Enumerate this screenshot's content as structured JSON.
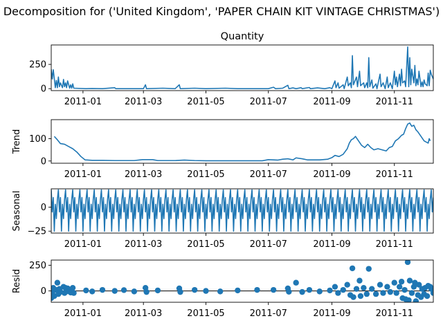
{
  "chart_data": {
    "type": "line",
    "title": "Decomposition for ('United Kingdom', 'PAPER CHAIN KIT VINTAGE CHRISTMAS')",
    "x_range": [
      "2010-12-01",
      "2011-12-09"
    ],
    "x_ticks": [
      "2011-01",
      "2011-03",
      "2011-05",
      "2011-07",
      "2011-09",
      "2011-11"
    ],
    "series_color": "#1f77b4",
    "panels": [
      {
        "key": "observed",
        "title": "Quantity",
        "ylabel": "",
        "type": "line",
        "ylim": [
          -20,
          450
        ],
        "yticks": [
          0,
          250
        ],
        "points": [
          [
            "2010-12-01",
            200
          ],
          [
            "2010-12-02",
            100
          ],
          [
            "2010-12-03",
            195
          ],
          [
            "2010-12-05",
            10
          ],
          [
            "2010-12-06",
            85
          ],
          [
            "2010-12-07",
            10
          ],
          [
            "2010-12-08",
            120
          ],
          [
            "2010-12-09",
            20
          ],
          [
            "2010-12-10",
            60
          ],
          [
            "2010-12-12",
            10
          ],
          [
            "2010-12-13",
            95
          ],
          [
            "2010-12-14",
            20
          ],
          [
            "2010-12-15",
            60
          ],
          [
            "2010-12-16",
            10
          ],
          [
            "2010-12-17",
            80
          ],
          [
            "2010-12-19",
            5
          ],
          [
            "2010-12-20",
            40
          ],
          [
            "2010-12-21",
            5
          ],
          [
            "2010-12-22",
            50
          ],
          [
            "2010-12-23",
            5
          ],
          [
            "2011-01-04",
            0
          ],
          [
            "2011-01-10",
            2
          ],
          [
            "2011-01-20",
            0
          ],
          [
            "2011-02-01",
            10
          ],
          [
            "2011-02-02",
            0
          ],
          [
            "2011-02-15",
            0
          ],
          [
            "2011-03-01",
            0
          ],
          [
            "2011-03-03",
            40
          ],
          [
            "2011-03-04",
            0
          ],
          [
            "2011-03-20",
            5
          ],
          [
            "2011-04-01",
            0
          ],
          [
            "2011-04-05",
            40
          ],
          [
            "2011-04-06",
            0
          ],
          [
            "2011-04-20",
            5
          ],
          [
            "2011-05-01",
            0
          ],
          [
            "2011-05-20",
            5
          ],
          [
            "2011-06-01",
            0
          ],
          [
            "2011-06-20",
            0
          ],
          [
            "2011-07-01",
            0
          ],
          [
            "2011-07-06",
            15
          ],
          [
            "2011-07-08",
            0
          ],
          [
            "2011-07-15",
            5
          ],
          [
            "2011-07-20",
            35
          ],
          [
            "2011-07-21",
            0
          ],
          [
            "2011-07-25",
            8
          ],
          [
            "2011-07-28",
            0
          ],
          [
            "2011-08-02",
            10
          ],
          [
            "2011-08-03",
            0
          ],
          [
            "2011-08-10",
            12
          ],
          [
            "2011-08-11",
            0
          ],
          [
            "2011-08-18",
            8
          ],
          [
            "2011-08-25",
            0
          ],
          [
            "2011-08-30",
            10
          ],
          [
            "2011-09-01",
            0
          ],
          [
            "2011-09-04",
            80
          ],
          [
            "2011-09-05",
            10
          ],
          [
            "2011-09-07",
            60
          ],
          [
            "2011-09-08",
            5
          ],
          [
            "2011-09-12",
            40
          ],
          [
            "2011-09-13",
            0
          ],
          [
            "2011-09-16",
            120
          ],
          [
            "2011-09-17",
            30
          ],
          [
            "2011-09-19",
            60
          ],
          [
            "2011-09-20",
            10
          ],
          [
            "2011-09-21",
            340
          ],
          [
            "2011-09-22",
            40
          ],
          [
            "2011-09-25",
            120
          ],
          [
            "2011-09-26",
            20
          ],
          [
            "2011-09-28",
            180
          ],
          [
            "2011-09-29",
            30
          ],
          [
            "2011-10-02",
            60
          ],
          [
            "2011-10-03",
            10
          ],
          [
            "2011-10-05",
            60
          ],
          [
            "2011-10-06",
            10
          ],
          [
            "2011-10-07",
            320
          ],
          [
            "2011-10-08",
            20
          ],
          [
            "2011-10-10",
            90
          ],
          [
            "2011-10-11",
            5
          ],
          [
            "2011-10-14",
            50
          ],
          [
            "2011-10-15",
            0
          ],
          [
            "2011-10-18",
            150
          ],
          [
            "2011-10-19",
            20
          ],
          [
            "2011-10-21",
            60
          ],
          [
            "2011-10-23",
            0
          ],
          [
            "2011-10-25",
            120
          ],
          [
            "2011-10-26",
            10
          ],
          [
            "2011-10-28",
            60
          ],
          [
            "2011-10-30",
            0
          ],
          [
            "2011-11-01",
            180
          ],
          [
            "2011-11-02",
            40
          ],
          [
            "2011-11-03",
            120
          ],
          [
            "2011-11-04",
            20
          ],
          [
            "2011-11-06",
            150
          ],
          [
            "2011-11-07",
            30
          ],
          [
            "2011-11-08",
            200
          ],
          [
            "2011-11-09",
            60
          ],
          [
            "2011-11-11",
            80
          ],
          [
            "2011-11-12",
            20
          ],
          [
            "2011-11-14",
            430
          ],
          [
            "2011-11-15",
            20
          ],
          [
            "2011-11-16",
            320
          ],
          [
            "2011-11-17",
            40
          ],
          [
            "2011-11-18",
            200
          ],
          [
            "2011-11-20",
            60
          ],
          [
            "2011-11-21",
            240
          ],
          [
            "2011-11-22",
            30
          ],
          [
            "2011-11-23",
            100
          ],
          [
            "2011-11-24",
            40
          ],
          [
            "2011-11-25",
            180
          ],
          [
            "2011-11-27",
            20
          ],
          [
            "2011-11-28",
            70
          ],
          [
            "2011-11-29",
            20
          ],
          [
            "2011-11-30",
            90
          ],
          [
            "2011-12-01",
            50
          ],
          [
            "2011-12-03",
            30
          ],
          [
            "2011-12-04",
            160
          ],
          [
            "2011-12-05",
            30
          ],
          [
            "2011-12-06",
            190
          ],
          [
            "2011-12-07",
            150
          ],
          [
            "2011-12-09",
            100
          ]
        ]
      },
      {
        "key": "trend",
        "title": "",
        "ylabel": "Trend",
        "type": "line",
        "ylim": [
          -10,
          185
        ],
        "yticks": [
          0,
          100
        ],
        "points": [
          [
            "2010-12-04",
            110
          ],
          [
            "2010-12-07",
            95
          ],
          [
            "2010-12-10",
            78
          ],
          [
            "2010-12-14",
            75
          ],
          [
            "2010-12-18",
            65
          ],
          [
            "2010-12-22",
            55
          ],
          [
            "2010-12-26",
            40
          ],
          [
            "2010-12-30",
            20
          ],
          [
            "2011-01-03",
            5
          ],
          [
            "2011-01-10",
            3
          ],
          [
            "2011-01-20",
            3
          ],
          [
            "2011-02-01",
            2
          ],
          [
            "2011-02-20",
            2
          ],
          [
            "2011-02-28",
            6
          ],
          [
            "2011-03-10",
            6
          ],
          [
            "2011-03-15",
            2
          ],
          [
            "2011-04-01",
            2
          ],
          [
            "2011-04-10",
            4
          ],
          [
            "2011-04-20",
            2
          ],
          [
            "2011-05-01",
            1
          ],
          [
            "2011-06-01",
            1
          ],
          [
            "2011-06-25",
            1
          ],
          [
            "2011-07-01",
            6
          ],
          [
            "2011-07-10",
            4
          ],
          [
            "2011-07-15",
            8
          ],
          [
            "2011-07-20",
            10
          ],
          [
            "2011-07-25",
            5
          ],
          [
            "2011-07-28",
            14
          ],
          [
            "2011-08-03",
            10
          ],
          [
            "2011-08-08",
            5
          ],
          [
            "2011-08-20",
            5
          ],
          [
            "2011-08-28",
            8
          ],
          [
            "2011-09-01",
            15
          ],
          [
            "2011-09-04",
            25
          ],
          [
            "2011-09-08",
            20
          ],
          [
            "2011-09-12",
            30
          ],
          [
            "2011-09-16",
            55
          ],
          [
            "2011-09-18",
            80
          ],
          [
            "2011-09-20",
            95
          ],
          [
            "2011-09-22",
            100
          ],
          [
            "2011-09-24",
            110
          ],
          [
            "2011-09-27",
            90
          ],
          [
            "2011-09-30",
            70
          ],
          [
            "2011-10-03",
            60
          ],
          [
            "2011-10-06",
            75
          ],
          [
            "2011-10-09",
            60
          ],
          [
            "2011-10-12",
            50
          ],
          [
            "2011-10-16",
            55
          ],
          [
            "2011-10-20",
            50
          ],
          [
            "2011-10-24",
            45
          ],
          [
            "2011-10-27",
            60
          ],
          [
            "2011-10-30",
            65
          ],
          [
            "2011-11-02",
            90
          ],
          [
            "2011-11-05",
            100
          ],
          [
            "2011-11-08",
            115
          ],
          [
            "2011-11-10",
            120
          ],
          [
            "2011-11-12",
            145
          ],
          [
            "2011-11-14",
            165
          ],
          [
            "2011-11-16",
            170
          ],
          [
            "2011-11-18",
            155
          ],
          [
            "2011-11-20",
            160
          ],
          [
            "2011-11-22",
            140
          ],
          [
            "2011-11-24",
            130
          ],
          [
            "2011-11-27",
            110
          ],
          [
            "2011-11-30",
            90
          ],
          [
            "2011-12-02",
            85
          ],
          [
            "2011-12-04",
            80
          ],
          [
            "2011-12-05",
            100
          ],
          [
            "2011-12-06",
            90
          ]
        ]
      },
      {
        "key": "seasonal",
        "title": "",
        "ylabel": "Seasonal",
        "type": "line",
        "ylim": [
          -27,
          19
        ],
        "yticks": [
          -25,
          0
        ],
        "period_pattern": [
          18,
          -5,
          10,
          -25,
          3,
          -12,
          8
        ],
        "start": "2010-12-01",
        "end": "2011-12-09"
      },
      {
        "key": "resid",
        "title": "",
        "ylabel": "Resid",
        "type": "scatter",
        "ylim": [
          -110,
          300
        ],
        "yticks": [
          0,
          250
        ],
        "zero_line": true,
        "points": [
          [
            "2010-12-01",
            -70
          ],
          [
            "2010-12-02",
            -20
          ],
          [
            "2010-12-03",
            30
          ],
          [
            "2010-12-04",
            -50
          ],
          [
            "2010-12-06",
            10
          ],
          [
            "2010-12-07",
            80
          ],
          [
            "2010-12-08",
            -30
          ],
          [
            "2010-12-09",
            20
          ],
          [
            "2010-12-10",
            -10
          ],
          [
            "2010-12-13",
            40
          ],
          [
            "2010-12-14",
            -20
          ],
          [
            "2010-12-15",
            30
          ],
          [
            "2010-12-16",
            -5
          ],
          [
            "2010-12-17",
            25
          ],
          [
            "2010-12-20",
            -15
          ],
          [
            "2010-12-21",
            10
          ],
          [
            "2010-12-22",
            30
          ],
          [
            "2010-12-23",
            -20
          ],
          [
            "2011-01-04",
            5
          ],
          [
            "2011-01-10",
            -5
          ],
          [
            "2011-01-20",
            10
          ],
          [
            "2011-02-01",
            0
          ],
          [
            "2011-02-10",
            8
          ],
          [
            "2011-02-20",
            -5
          ],
          [
            "2011-03-03",
            30
          ],
          [
            "2011-03-04",
            -10
          ],
          [
            "2011-03-15",
            5
          ],
          [
            "2011-04-05",
            25
          ],
          [
            "2011-04-06",
            -10
          ],
          [
            "2011-04-20",
            10
          ],
          [
            "2011-05-01",
            0
          ],
          [
            "2011-05-15",
            -5
          ],
          [
            "2011-06-01",
            5
          ],
          [
            "2011-06-20",
            10
          ],
          [
            "2011-07-06",
            10
          ],
          [
            "2011-07-20",
            25
          ],
          [
            "2011-07-21",
            -8
          ],
          [
            "2011-07-28",
            80
          ],
          [
            "2011-08-03",
            -10
          ],
          [
            "2011-08-10",
            10
          ],
          [
            "2011-08-20",
            -5
          ],
          [
            "2011-08-30",
            5
          ],
          [
            "2011-09-04",
            40
          ],
          [
            "2011-09-07",
            -20
          ],
          [
            "2011-09-12",
            10
          ],
          [
            "2011-09-16",
            60
          ],
          [
            "2011-09-19",
            -40
          ],
          [
            "2011-09-21",
            220
          ],
          [
            "2011-09-22",
            -60
          ],
          [
            "2011-09-25",
            20
          ],
          [
            "2011-09-28",
            100
          ],
          [
            "2011-09-29",
            -50
          ],
          [
            "2011-10-02",
            30
          ],
          [
            "2011-10-05",
            -30
          ],
          [
            "2011-10-07",
            215
          ],
          [
            "2011-10-10",
            20
          ],
          [
            "2011-10-14",
            -30
          ],
          [
            "2011-10-18",
            60
          ],
          [
            "2011-10-21",
            -20
          ],
          [
            "2011-10-25",
            40
          ],
          [
            "2011-10-28",
            -10
          ],
          [
            "2011-11-01",
            80
          ],
          [
            "2011-11-03",
            -20
          ],
          [
            "2011-11-06",
            40
          ],
          [
            "2011-11-08",
            90
          ],
          [
            "2011-11-09",
            -70
          ],
          [
            "2011-11-11",
            10
          ],
          [
            "2011-11-12",
            -80
          ],
          [
            "2011-11-14",
            280
          ],
          [
            "2011-11-15",
            -90
          ],
          [
            "2011-11-16",
            100
          ],
          [
            "2011-11-18",
            -20
          ],
          [
            "2011-11-20",
            40
          ],
          [
            "2011-11-21",
            80
          ],
          [
            "2011-11-22",
            -100
          ],
          [
            "2011-11-24",
            -40
          ],
          [
            "2011-11-25",
            60
          ],
          [
            "2011-11-27",
            -60
          ],
          [
            "2011-11-28",
            20
          ],
          [
            "2011-11-30",
            -30
          ],
          [
            "2011-12-01",
            30
          ],
          [
            "2011-12-03",
            -50
          ],
          [
            "2011-12-04",
            50
          ],
          [
            "2011-12-06",
            40
          ],
          [
            "2011-12-07",
            20
          ],
          [
            "2011-12-09",
            -20
          ]
        ]
      }
    ]
  }
}
